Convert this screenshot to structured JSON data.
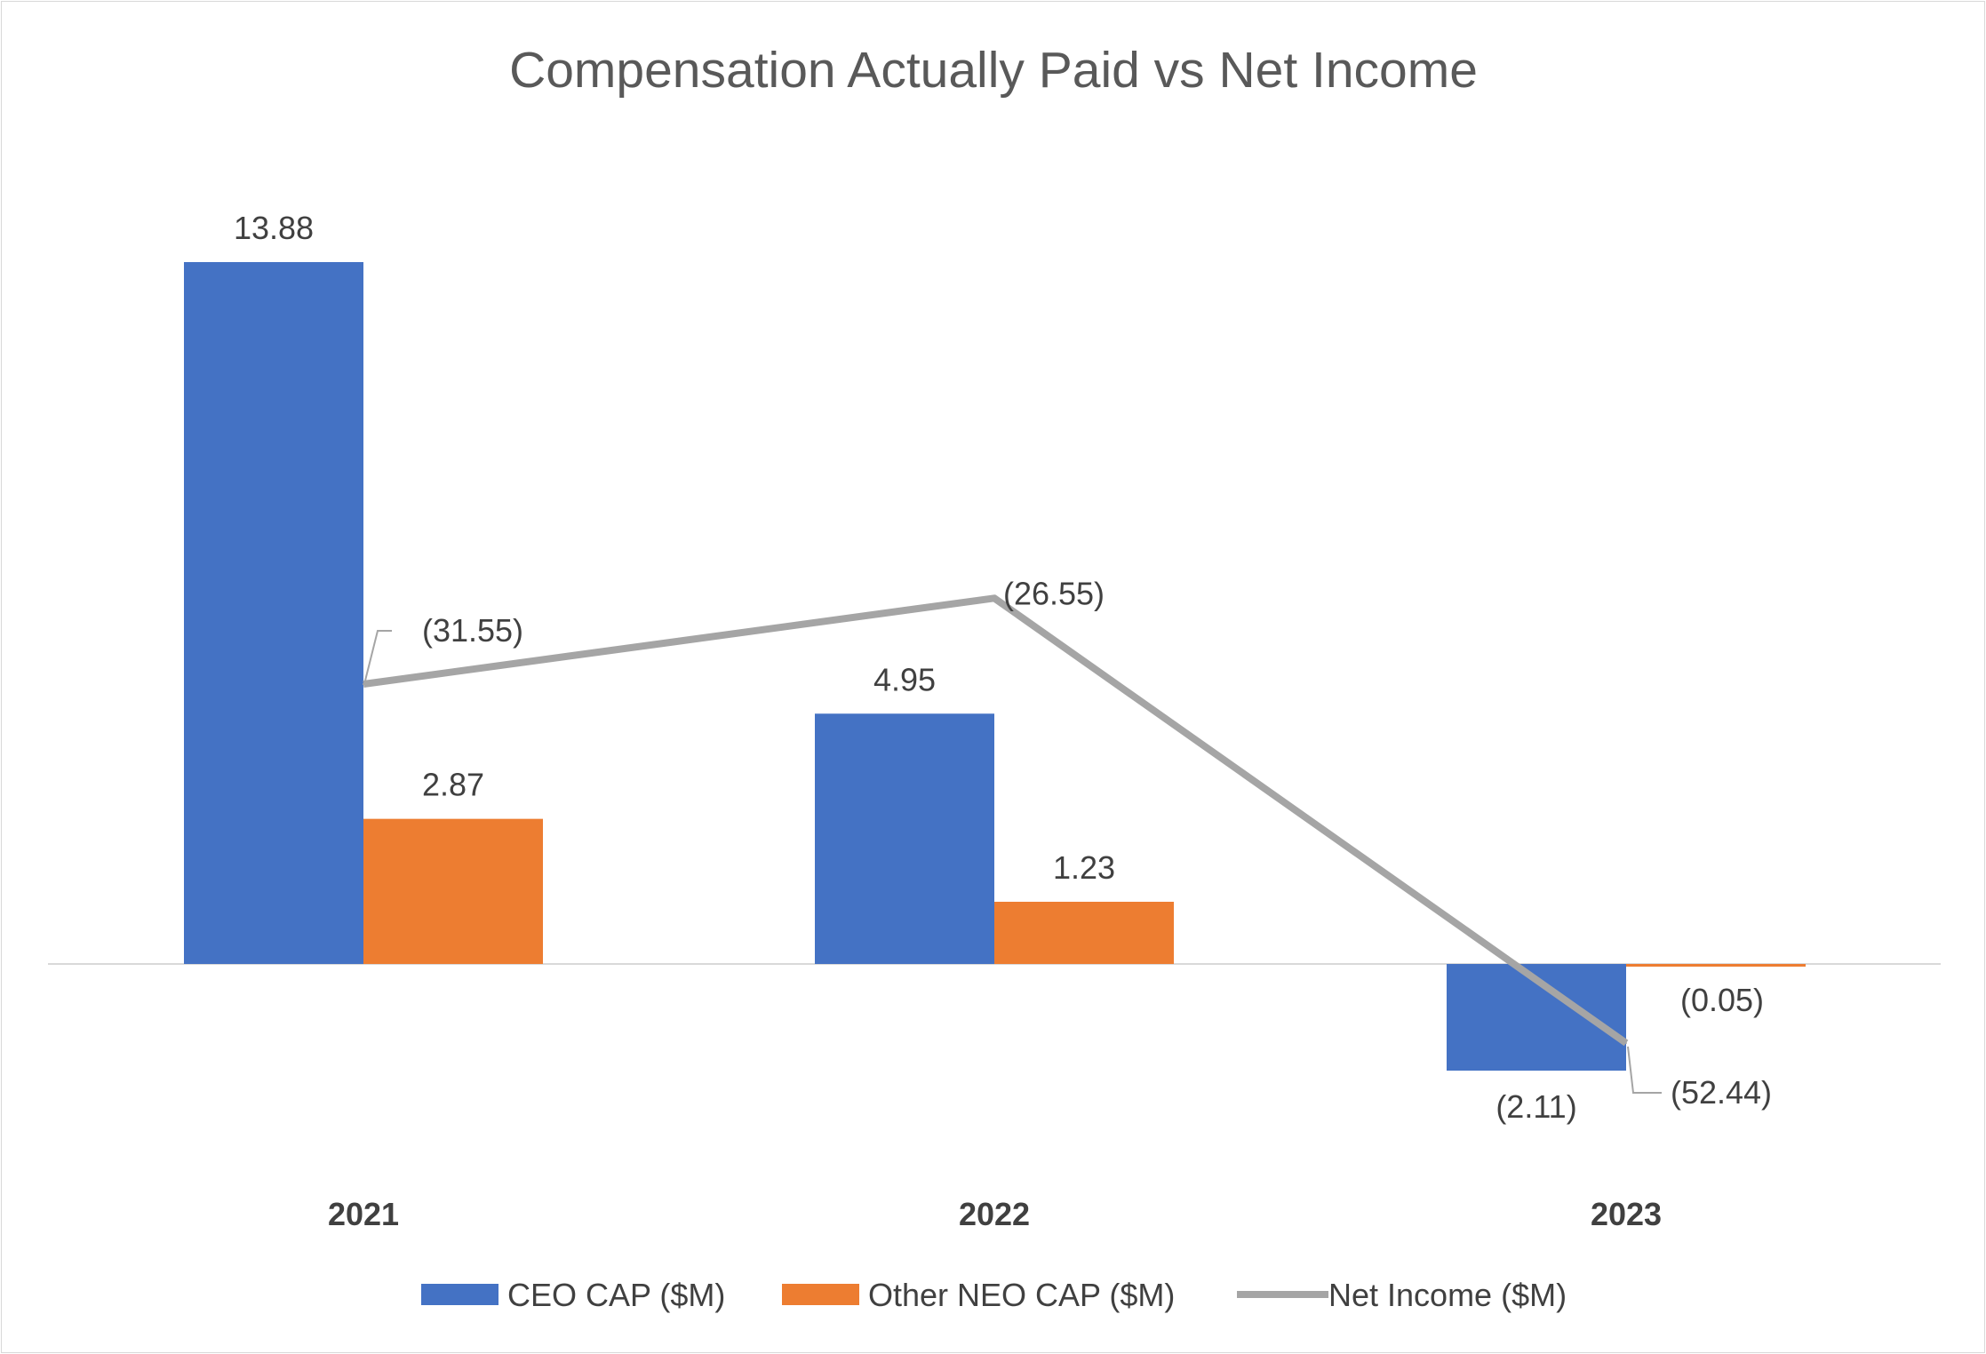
{
  "chart_data": {
    "type": "bar",
    "title": "Compensation Actually Paid vs Net Income",
    "categories": [
      "2021",
      "2022",
      "2023"
    ],
    "series": [
      {
        "name": "CEO CAP ($M)",
        "kind": "bar",
        "color": "#4472c4",
        "values": [
          13.88,
          4.95,
          -2.11
        ],
        "labels": [
          "13.88",
          "4.95",
          "(2.11)"
        ]
      },
      {
        "name": "Other NEO CAP ($M)",
        "kind": "bar",
        "color": "#ed7d31",
        "values": [
          2.87,
          1.23,
          -0.05
        ],
        "labels": [
          "2.87",
          "1.23",
          "(0.05)"
        ]
      },
      {
        "name": "Net Income ($M)",
        "kind": "line",
        "color": "#a5a5a5",
        "values": [
          -31.55,
          -26.55,
          -52.44
        ],
        "labels": [
          "(31.55)",
          "(26.55)",
          "(52.44)"
        ]
      }
    ],
    "legend_position": "bottom",
    "grid": false,
    "xlabel": "",
    "ylabel": ""
  }
}
